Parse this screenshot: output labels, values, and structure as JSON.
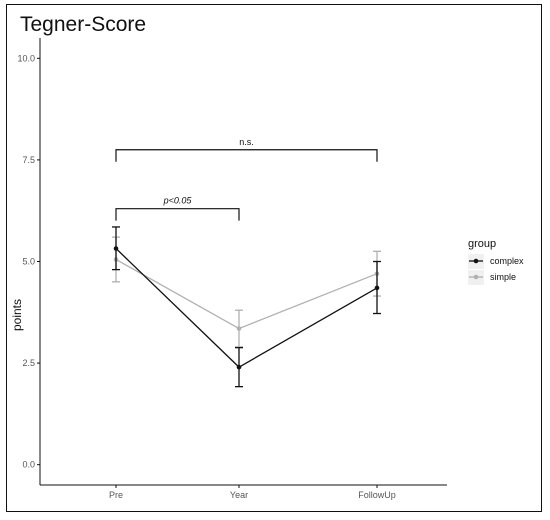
{
  "chart_data": {
    "type": "line",
    "title": "Tegner-Score",
    "xlabel": "",
    "ylabel": "points",
    "categories": [
      "Pre",
      "Year",
      "FollowUp"
    ],
    "ylim": [
      -0.5,
      10.5
    ],
    "yticks": [
      "0.0",
      "2.5",
      "5.0",
      "7.5",
      "10.0"
    ],
    "ytick_values": [
      0,
      2.5,
      5,
      7.5,
      10
    ],
    "grid": false,
    "legend": {
      "title": "group",
      "placement": "right"
    },
    "series": [
      {
        "name": "simple",
        "color": "#b0b0b0",
        "values": [
          5.05,
          3.35,
          4.7
        ],
        "err_low": [
          4.5,
          2.9,
          4.15
        ],
        "err_high": [
          5.6,
          3.8,
          5.25
        ]
      },
      {
        "name": "complex",
        "color": "#111111",
        "values": [
          5.32,
          2.4,
          4.35
        ],
        "err_low": [
          4.8,
          1.92,
          3.72
        ],
        "err_high": [
          5.85,
          2.88,
          5.0
        ]
      }
    ],
    "annotations": [
      {
        "text": "p<0.05",
        "from": "Pre",
        "to": "Year",
        "y": 6.3,
        "italic": true
      },
      {
        "text": "n.s.",
        "from": "Pre",
        "to": "FollowUp",
        "y": 7.75,
        "italic": false
      }
    ]
  }
}
